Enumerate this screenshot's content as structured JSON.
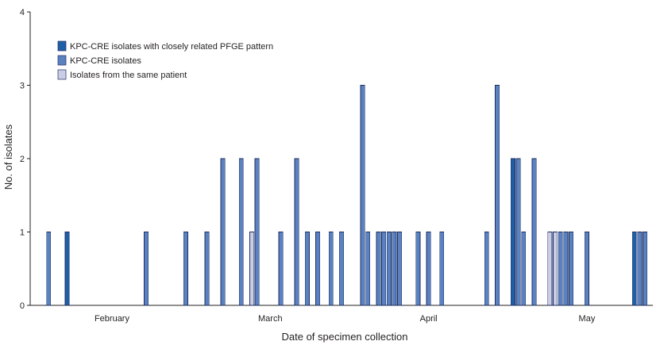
{
  "chart_data": {
    "type": "bar",
    "xlabel": "Date of specimen collection",
    "ylabel": "No. of isolates",
    "ylim": [
      0,
      4
    ],
    "yticks": [
      0,
      1,
      2,
      3,
      4
    ],
    "x_range_days": [
      0,
      115
    ],
    "month_ticks": [
      {
        "label": "February",
        "day": 14
      },
      {
        "label": "March",
        "day": 44
      },
      {
        "label": "April",
        "day": 74
      },
      {
        "label": "May",
        "day": 104
      }
    ],
    "colors": {
      "closely_related": "#1f5fa8",
      "kpc": "#5b82c0",
      "same_patient": "#c9cde6"
    },
    "legend": [
      {
        "key": "closely_related",
        "label": "KPC-CRE isolates with closely related PFGE pattern"
      },
      {
        "key": "kpc",
        "label": "KPC-CRE isolates"
      },
      {
        "key": "same_patient",
        "label": "Isolates from the same patient"
      }
    ],
    "bars": [
      {
        "day": 2,
        "series": "kpc",
        "value": 1
      },
      {
        "day": 5.5,
        "series": "closely_related",
        "value": 1
      },
      {
        "day": 20.5,
        "series": "kpc",
        "value": 1
      },
      {
        "day": 28,
        "series": "kpc",
        "value": 1
      },
      {
        "day": 32,
        "series": "kpc",
        "value": 1
      },
      {
        "day": 35,
        "series": "kpc",
        "value": 2
      },
      {
        "day": 38.5,
        "series": "kpc",
        "value": 2
      },
      {
        "day": 40.5,
        "series": "same_patient",
        "value": 1
      },
      {
        "day": 41.5,
        "series": "kpc",
        "value": 2
      },
      {
        "day": 46,
        "series": "kpc",
        "value": 1
      },
      {
        "day": 49,
        "series": "kpc",
        "value": 2
      },
      {
        "day": 51,
        "series": "kpc",
        "value": 1
      },
      {
        "day": 53,
        "series": "kpc",
        "value": 1
      },
      {
        "day": 55.5,
        "series": "kpc",
        "value": 1
      },
      {
        "day": 57.5,
        "series": "kpc",
        "value": 1
      },
      {
        "day": 61.5,
        "series": "kpc",
        "value": 3
      },
      {
        "day": 62.5,
        "series": "kpc",
        "value": 1
      },
      {
        "day": 64.5,
        "series": "kpc",
        "value": 1
      },
      {
        "day": 65.5,
        "series": "kpc",
        "value": 1
      },
      {
        "day": 66.5,
        "series": "kpc",
        "value": 1
      },
      {
        "day": 67.5,
        "series": "kpc",
        "value": 1
      },
      {
        "day": 68.5,
        "series": "kpc",
        "value": 1
      },
      {
        "day": 72,
        "series": "kpc",
        "value": 1
      },
      {
        "day": 74,
        "series": "kpc",
        "value": 1
      },
      {
        "day": 76.5,
        "series": "kpc",
        "value": 1
      },
      {
        "day": 85,
        "series": "kpc",
        "value": 1
      },
      {
        "day": 87,
        "series": "kpc",
        "value": 3
      },
      {
        "day": 90,
        "series": "closely_related",
        "value": 2
      },
      {
        "day": 91,
        "series": "kpc",
        "value": 2
      },
      {
        "day": 92,
        "series": "kpc",
        "value": 1
      },
      {
        "day": 94,
        "series": "kpc",
        "value": 2
      },
      {
        "day": 97,
        "series": "same_patient",
        "value": 1
      },
      {
        "day": 98,
        "series": "same_patient",
        "value": 1
      },
      {
        "day": 99,
        "series": "kpc",
        "value": 1
      },
      {
        "day": 100,
        "series": "kpc",
        "value": 1
      },
      {
        "day": 101,
        "series": "kpc",
        "value": 1
      },
      {
        "day": 104,
        "series": "kpc",
        "value": 1
      },
      {
        "day": 113,
        "series": "closely_related",
        "value": 1
      },
      {
        "day": 114,
        "series": "kpc",
        "value": 1
      },
      {
        "day": 115,
        "series": "kpc",
        "value": 1
      }
    ]
  }
}
